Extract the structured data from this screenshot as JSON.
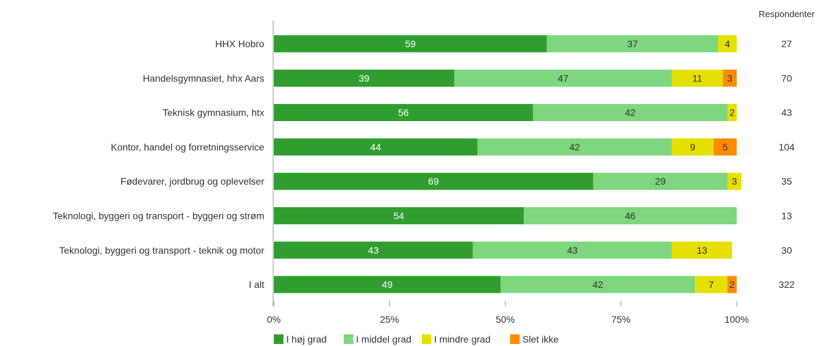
{
  "chart_data": {
    "type": "bar",
    "orientation": "horizontal",
    "stacked": true,
    "xlim": [
      0,
      100
    ],
    "x_ticks": [
      "0%",
      "25%",
      "50%",
      "75%",
      "100%"
    ],
    "x_tick_values": [
      0,
      25,
      50,
      75,
      100
    ],
    "grid": false,
    "legend_position": "bottom",
    "categories": [
      "HHX Hobro",
      "Handelsgymnasiet, hhx Aars",
      "Teknisk gymnasium, htx",
      "Kontor, handel og forretningsservice",
      "Fødevarer, jordbrug og oplevelser",
      "Teknologi, byggeri og transport - byggeri og strøm",
      "Teknologi, byggeri og transport - teknik og motor",
      "I alt"
    ],
    "series": [
      {
        "name": "I høj grad",
        "color": "#2f9e2f",
        "label_color": "#ffffff",
        "values": [
          59,
          39,
          56,
          44,
          69,
          54,
          43,
          49
        ]
      },
      {
        "name": "I middel grad",
        "color": "#7ed67e",
        "label_color": "#333333",
        "values": [
          37,
          47,
          42,
          42,
          29,
          46,
          43,
          42
        ]
      },
      {
        "name": "I mindre grad",
        "color": "#e6e000",
        "label_color": "#333333",
        "values": [
          4,
          11,
          2,
          9,
          3,
          0,
          13,
          7
        ]
      },
      {
        "name": "Slet ikke",
        "color": "#ff8c00",
        "label_color": "#333333",
        "values": [
          0,
          3,
          0,
          5,
          0,
          0,
          0,
          2
        ]
      }
    ],
    "respondents_header": "Respondenter",
    "respondents": [
      "27",
      "70",
      "43",
      "104",
      "35",
      "13",
      "30",
      "322"
    ]
  }
}
